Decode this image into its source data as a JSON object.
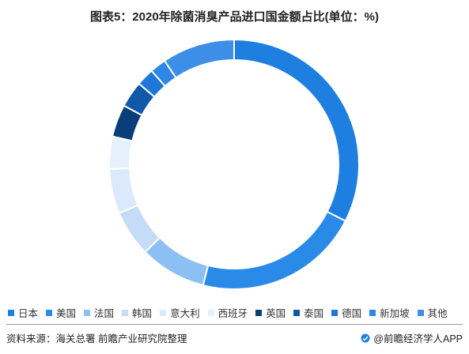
{
  "title": "图表5：2020年除菌消臭产品进口国金额占比(单位：%)",
  "chart_data": {
    "type": "pie",
    "variant": "donut",
    "title": "图表5：2020年除菌消臭产品进口国金额占比(单位：%)",
    "legend_position": "bottom",
    "direction": "clockwise",
    "start": "top",
    "categories": [
      "日本",
      "美国",
      "法国",
      "韩国",
      "意大利",
      "西班牙",
      "英国",
      "泰国",
      "德国",
      "新加坡",
      "其他"
    ],
    "values": [
      32.5,
      21.5,
      8.6,
      6.0,
      5.8,
      4.2,
      4.2,
      3.4,
      2.3,
      2.1,
      9.4
    ],
    "colors": [
      "#1e7fe0",
      "#2a8ae8",
      "#8cc0f5",
      "#c5dcf8",
      "#daeafc",
      "#e6f1fd",
      "#0a3e78",
      "#1158a8",
      "#1f78d8",
      "#2f86e6",
      "#3c8ee6"
    ]
  },
  "footer": {
    "source": "资料来源：海关总署 前瞻产业研究院整理",
    "brand": "@前瞻经济学人APP"
  }
}
